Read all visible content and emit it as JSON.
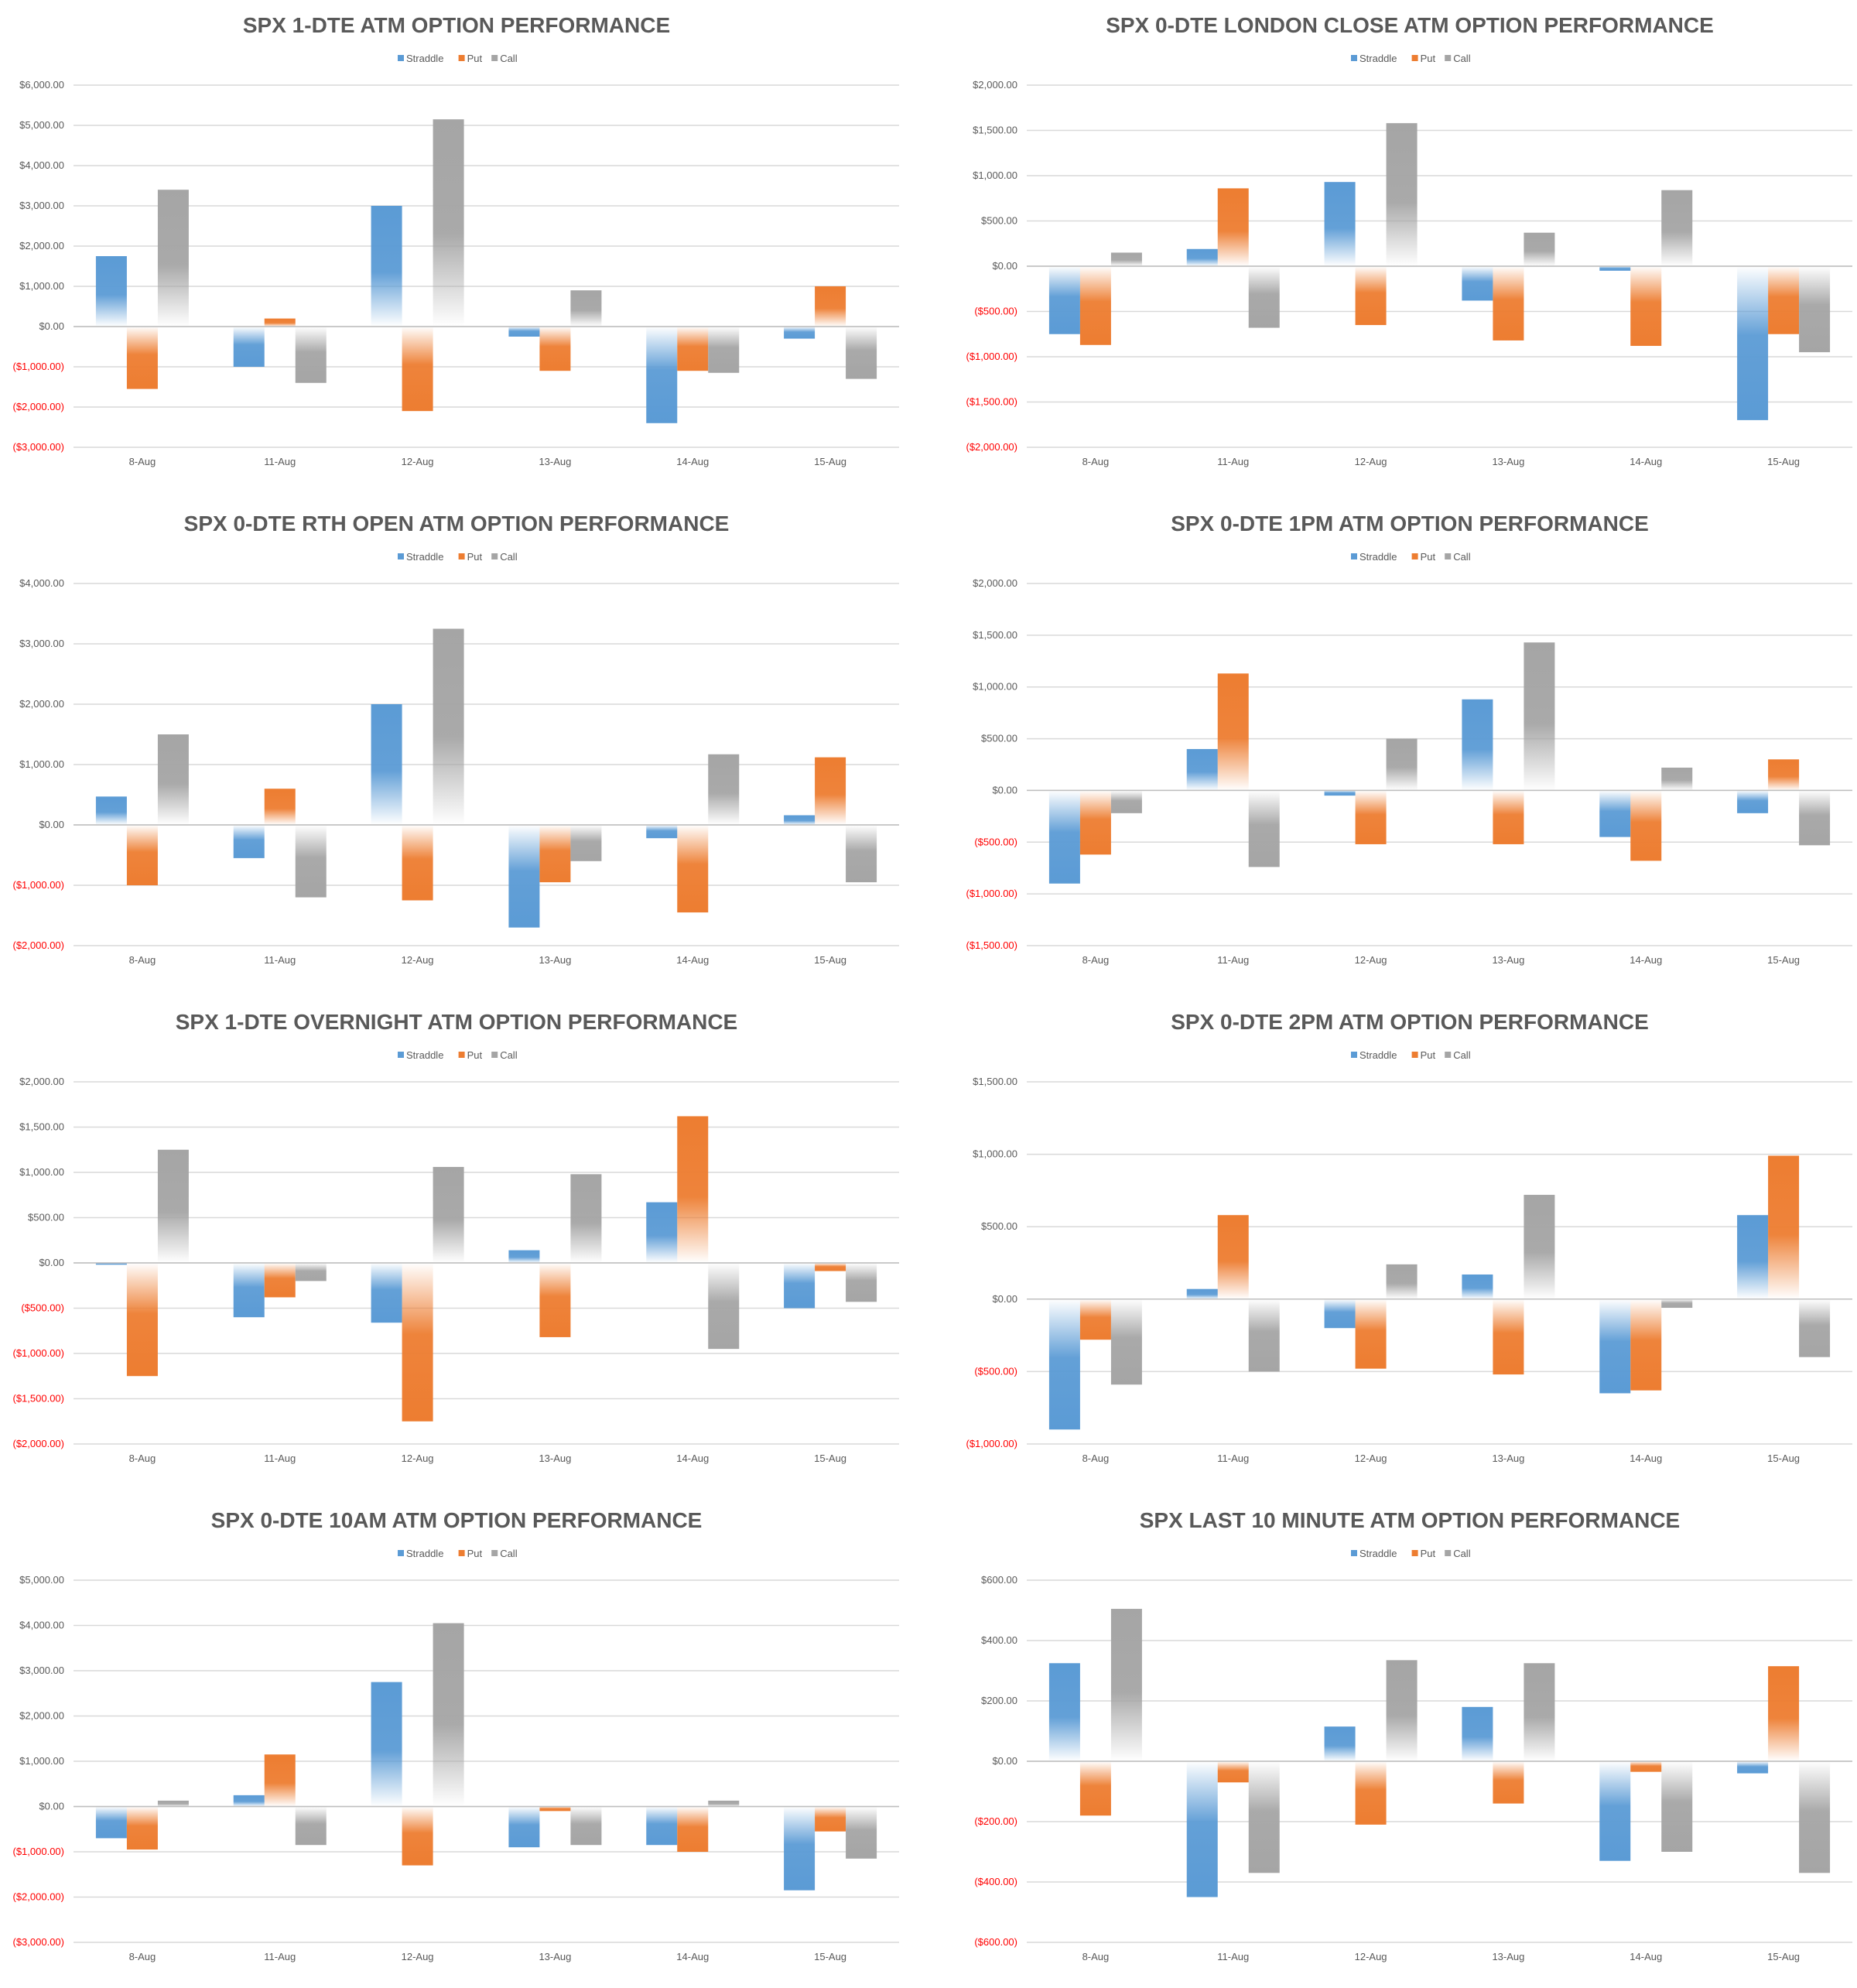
{
  "colors": {
    "straddle": "#5b9bd5",
    "put": "#ed7d31",
    "call": "#a5a5a5",
    "negative_tick": "#ff0000",
    "tick": "#595959",
    "grid": "#d9d9d9"
  },
  "chart_data": [
    {
      "type": "bar",
      "title": "SPX 1-DTE ATM OPTION PERFORMANCE",
      "categories": [
        "8-Aug",
        "11-Aug",
        "12-Aug",
        "13-Aug",
        "14-Aug",
        "15-Aug"
      ],
      "series": [
        {
          "name": "Straddle",
          "values": [
            1750,
            -1000,
            3000,
            -250,
            -2400,
            -300
          ]
        },
        {
          "name": "Put",
          "values": [
            -1550,
            200,
            -2100,
            -1100,
            -1100,
            1000
          ]
        },
        {
          "name": "Call",
          "values": [
            3400,
            -1400,
            5150,
            900,
            -1150,
            -1300
          ]
        }
      ],
      "ylim": [
        -3000,
        6000
      ],
      "yticks": [
        "$6,000.00",
        "$5,000.00",
        "$4,000.00",
        "$3,000.00",
        "$2,000.00",
        "$1,000.00",
        "$0.00",
        "($1,000.00)",
        "($2,000.00)",
        "($3,000.00)"
      ],
      "legend": "top"
    },
    {
      "type": "bar",
      "title": "SPX 0-DTE  LONDON CLOSE ATM OPTION PERFORMANCE",
      "categories": [
        "8-Aug",
        "11-Aug",
        "12-Aug",
        "13-Aug",
        "14-Aug",
        "15-Aug"
      ],
      "series": [
        {
          "name": "Straddle",
          "values": [
            -750,
            190,
            930,
            -380,
            -50,
            -1700
          ]
        },
        {
          "name": "Put",
          "values": [
            -870,
            860,
            -650,
            -820,
            -880,
            -750
          ]
        },
        {
          "name": "Call",
          "values": [
            150,
            -680,
            1580,
            370,
            840,
            -950
          ]
        }
      ],
      "ylim": [
        -2000,
        2000
      ],
      "yticks": [
        "$2,000.00",
        "$1,500.00",
        "$1,000.00",
        "$500.00",
        "$0.00",
        "($500.00)",
        "($1,000.00)",
        "($1,500.00)",
        "($2,000.00)"
      ],
      "legend": "top"
    },
    {
      "type": "bar",
      "title": "SPX 0-DTE RTH OPEN ATM OPTION PERFORMANCE",
      "categories": [
        "8-Aug",
        "11-Aug",
        "12-Aug",
        "13-Aug",
        "14-Aug",
        "15-Aug"
      ],
      "series": [
        {
          "name": "Straddle",
          "values": [
            470,
            -550,
            2000,
            -1700,
            -220,
            160
          ]
        },
        {
          "name": "Put",
          "values": [
            -1000,
            600,
            -1250,
            -950,
            -1450,
            1120
          ]
        },
        {
          "name": "Call",
          "values": [
            1500,
            -1200,
            3250,
            -600,
            1170,
            -950
          ]
        }
      ],
      "ylim": [
        -2000,
        4000
      ],
      "yticks": [
        "$4,000.00",
        "$3,000.00",
        "$2,000.00",
        "$1,000.00",
        "$0.00",
        "($1,000.00)",
        "($2,000.00)"
      ],
      "legend": "top"
    },
    {
      "type": "bar",
      "title": "SPX 0-DTE 1PM ATM OPTION PERFORMANCE",
      "categories": [
        "8-Aug",
        "11-Aug",
        "12-Aug",
        "13-Aug",
        "14-Aug",
        "15-Aug"
      ],
      "series": [
        {
          "name": "Straddle",
          "values": [
            -900,
            400,
            -50,
            880,
            -450,
            -220
          ]
        },
        {
          "name": "Put",
          "values": [
            -620,
            1130,
            -520,
            -520,
            -680,
            300
          ]
        },
        {
          "name": "Call",
          "values": [
            -220,
            -740,
            500,
            1430,
            220,
            -530
          ]
        }
      ],
      "ylim": [
        -1500,
        2000
      ],
      "yticks": [
        "$2,000.00",
        "$1,500.00",
        "$1,000.00",
        "$500.00",
        "$0.00",
        "($500.00)",
        "($1,000.00)",
        "($1,500.00)"
      ],
      "legend": "top"
    },
    {
      "type": "bar",
      "title": "SPX 1-DTE OVERNIGHT ATM OPTION PERFORMANCE",
      "categories": [
        "8-Aug",
        "11-Aug",
        "12-Aug",
        "13-Aug",
        "14-Aug",
        "15-Aug"
      ],
      "series": [
        {
          "name": "Straddle",
          "values": [
            -20,
            -600,
            -660,
            140,
            670,
            -500
          ]
        },
        {
          "name": "Put",
          "values": [
            -1250,
            -380,
            -1750,
            -820,
            1620,
            -90
          ]
        },
        {
          "name": "Call",
          "values": [
            1250,
            -200,
            1060,
            980,
            -950,
            -430
          ]
        }
      ],
      "ylim": [
        -2000,
        2000
      ],
      "yticks": [
        "$2,000.00",
        "$1,500.00",
        "$1,000.00",
        "$500.00",
        "$0.00",
        "($500.00)",
        "($1,000.00)",
        "($1,500.00)",
        "($2,000.00)"
      ],
      "legend": "top"
    },
    {
      "type": "bar",
      "title": "SPX 0-DTE 2PM ATM OPTION PERFORMANCE",
      "categories": [
        "8-Aug",
        "11-Aug",
        "12-Aug",
        "13-Aug",
        "14-Aug",
        "15-Aug"
      ],
      "series": [
        {
          "name": "Straddle",
          "values": [
            -900,
            70,
            -200,
            170,
            -650,
            580
          ]
        },
        {
          "name": "Put",
          "values": [
            -280,
            580,
            -480,
            -520,
            -630,
            990
          ]
        },
        {
          "name": "Call",
          "values": [
            -590,
            -500,
            240,
            720,
            -60,
            -400
          ]
        }
      ],
      "ylim": [
        -1000,
        1500
      ],
      "yticks": [
        "$1,500.00",
        "$1,000.00",
        "$500.00",
        "$0.00",
        "($500.00)",
        "($1,000.00)"
      ],
      "legend": "top"
    },
    {
      "type": "bar",
      "title": "SPX 0-DTE 10AM ATM OPTION PERFORMANCE",
      "categories": [
        "8-Aug",
        "11-Aug",
        "12-Aug",
        "13-Aug",
        "14-Aug",
        "15-Aug"
      ],
      "series": [
        {
          "name": "Straddle",
          "values": [
            -700,
            250,
            2750,
            -900,
            -850,
            -1850
          ]
        },
        {
          "name": "Put",
          "values": [
            -950,
            1150,
            -1300,
            -100,
            -1000,
            -550
          ]
        },
        {
          "name": "Call",
          "values": [
            130,
            -850,
            4050,
            -850,
            130,
            -1150
          ]
        }
      ],
      "ylim": [
        -3000,
        5000
      ],
      "yticks": [
        "$5,000.00",
        "$4,000.00",
        "$3,000.00",
        "$2,000.00",
        "$1,000.00",
        "$0.00",
        "($1,000.00)",
        "($2,000.00)",
        "($3,000.00)"
      ],
      "legend": "top"
    },
    {
      "type": "bar",
      "title": "SPX LAST 10 MINUTE ATM OPTION PERFORMANCE",
      "categories": [
        "8-Aug",
        "11-Aug",
        "12-Aug",
        "13-Aug",
        "14-Aug",
        "15-Aug"
      ],
      "series": [
        {
          "name": "Straddle",
          "values": [
            325,
            -450,
            115,
            180,
            -330,
            -40
          ]
        },
        {
          "name": "Put",
          "values": [
            -180,
            -70,
            -210,
            -140,
            -35,
            315
          ]
        },
        {
          "name": "Call",
          "values": [
            505,
            -370,
            335,
            325,
            -300,
            -370
          ]
        }
      ],
      "ylim": [
        -600,
        600
      ],
      "yticks": [
        "$600.00",
        "$400.00",
        "$200.00",
        "$0.00",
        "($200.00)",
        "($400.00)",
        "($600.00)"
      ],
      "legend": "top"
    }
  ]
}
